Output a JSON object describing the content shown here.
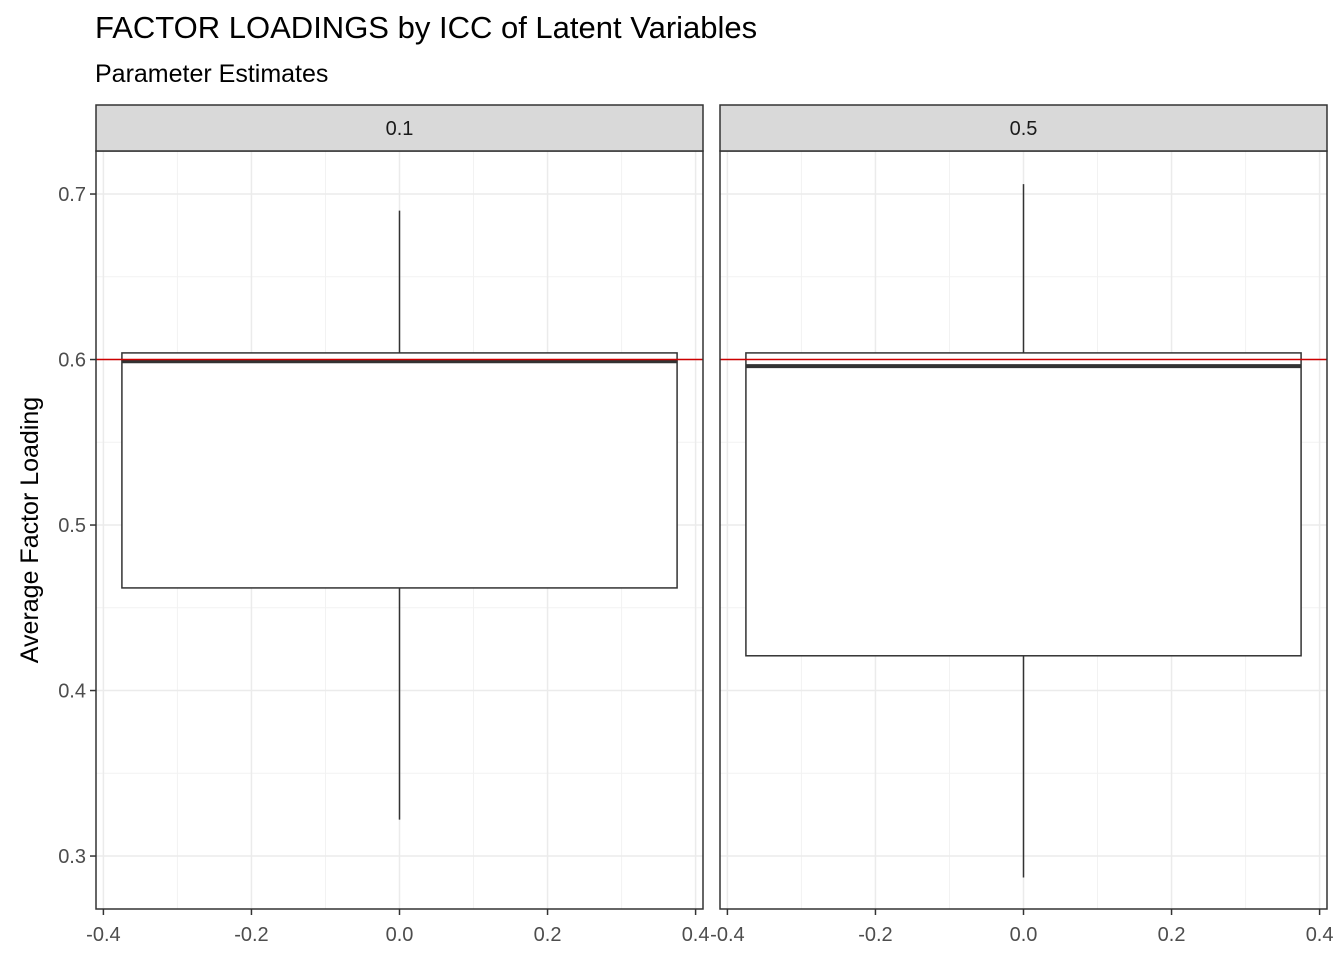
{
  "chart_data": {
    "type": "boxplot",
    "title": "FACTOR LOADINGS by ICC of Latent Variables",
    "subtitle": "Parameter Estimates",
    "ylabel": "Average Factor Loading",
    "xlabel": "",
    "ylim": [
      0.268,
      0.726
    ],
    "xlim": [
      -0.41,
      0.41
    ],
    "yticks": [
      0.3,
      0.4,
      0.5,
      0.6,
      0.7
    ],
    "xticks": [
      -0.4,
      -0.2,
      0.0,
      0.2,
      0.4
    ],
    "ytick_labels": [
      "0.3",
      "0.4",
      "0.5",
      "0.6",
      "0.7"
    ],
    "xtick_labels": [
      "-0.4",
      "-0.2",
      "0.0",
      "0.2",
      "0.4"
    ],
    "reference_line": {
      "y": 0.6,
      "color": "#cc0000"
    },
    "grid": true,
    "box_x_range": [
      -0.375,
      0.375
    ],
    "facets": [
      {
        "label": "0.1",
        "box": {
          "min": 0.322,
          "q1": 0.462,
          "median": 0.599,
          "q3": 0.604,
          "max": 0.69
        }
      },
      {
        "label": "0.5",
        "box": {
          "min": 0.287,
          "q1": 0.421,
          "median": 0.596,
          "q3": 0.604,
          "max": 0.706
        }
      }
    ]
  }
}
